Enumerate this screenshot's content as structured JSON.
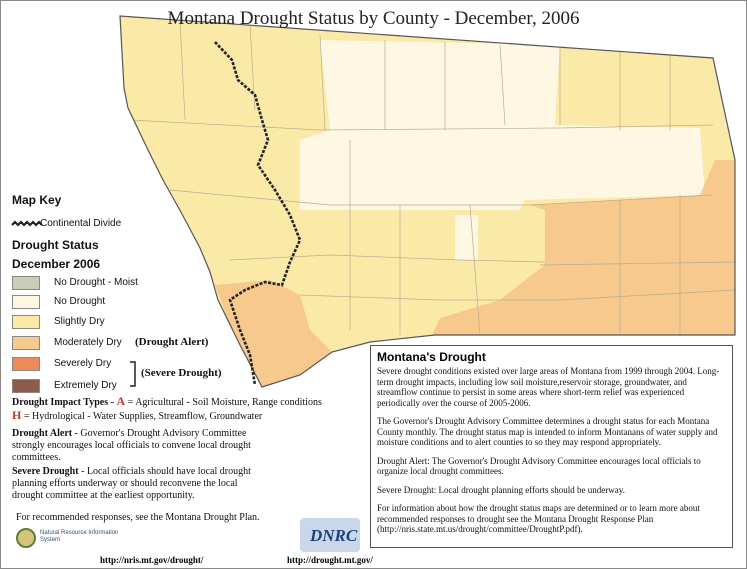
{
  "title": "Montana Drought Status by County - December, 2006",
  "legend": {
    "heading": "Map Key",
    "divide": "Continental Divide",
    "status_heading": "Drought Status",
    "status_date": "December 2006",
    "items": [
      {
        "label": "No Drought - Moist",
        "color": "#c9cdb6"
      },
      {
        "label": "No Drought",
        "color": "#fdf7e4"
      },
      {
        "label": "Slightly Dry",
        "color": "#fbe9a7"
      },
      {
        "label": "Moderately Dry",
        "color": "#f7c98c"
      },
      {
        "label": "Severely Dry",
        "color": "#ef8a5a"
      },
      {
        "label": "Extremely Dry",
        "color": "#8b5c4b"
      }
    ],
    "alert_label": "(Drought Alert)",
    "severe_label": "(Severe Drought)"
  },
  "impact_types": {
    "heading": "Drought Impact Types - ",
    "agricultural": {
      "symbol": "A",
      "text": "= Agricultural - Soil Moisture, Range conditions"
    },
    "hydrological": {
      "symbol": "H",
      "text": "= Hydrological - Water Supplies, Streamflow, Groundwater"
    }
  },
  "notes": [
    {
      "term": "Drought Alert",
      "text": " - Governor's Drought Advisory Committee strongly encourages local officials to convene local drought committees."
    },
    {
      "term": "Severe Drought",
      "text": " - Local officials should have local drought planning efforts underway or should reconvene the local drought committee at the earliest opportunity."
    }
  ],
  "plan_note": "For recommended responses, see the Montana Drought Plan.",
  "info_box": {
    "title": "Montana's Drought",
    "paragraphs": [
      "Severe drought conditions existed over large areas of Montana from 1999 through 2004. Long-term drought impacts, including low soil moisture,reservoir storage, groundwater, and streamflow continue to persist in some areas where short-term relief was experienced periodically over the course of 2005-2006.",
      "The Governor's Drought Advisory Committee determines a drought status for each Montana County monthly. The drought status map is intended to inform Montanans of water supply and moisture conditions and to alert counties to so they may respond appropriately.",
      "Drought Alert: The Governor's Drought Advisory Committee encourages local officials to organize local drought committees.",
      "Severe Drought: Local drought planning efforts should be underway.",
      "For information about how the drought status maps are determined or to learn more about recommended responses to drought see the Montana Drought Response Plan (http://nris.state.mt.us/drought/committee/DroughtP.pdf)."
    ]
  },
  "logos": {
    "nris": "Natural Resource Information System",
    "dnrc": "DNRC"
  },
  "urls": [
    "http://nris.mt.gov/drought/",
    "http://drought.mt.gov/"
  ]
}
